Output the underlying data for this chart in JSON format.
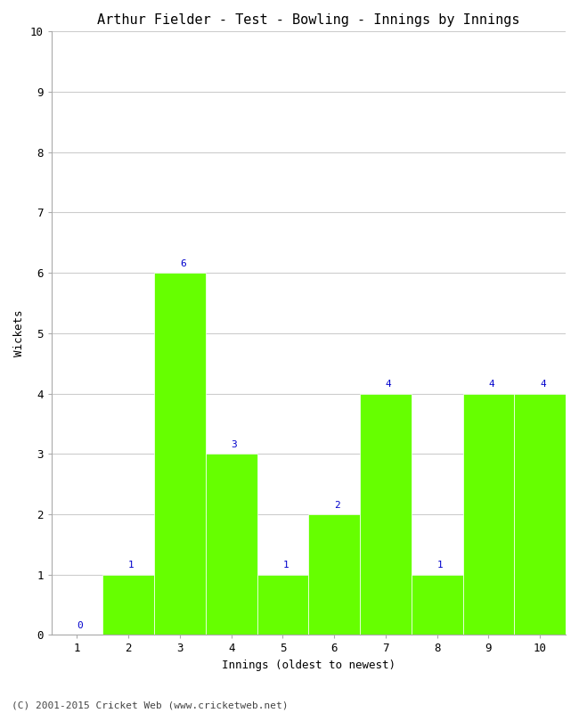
{
  "title": "Arthur Fielder - Test - Bowling - Innings by Innings",
  "xlabel": "Innings (oldest to newest)",
  "ylabel": "Wickets",
  "categories": [
    "1",
    "2",
    "3",
    "4",
    "5",
    "6",
    "7",
    "8",
    "9",
    "10"
  ],
  "values": [
    0,
    1,
    6,
    3,
    1,
    2,
    4,
    1,
    4,
    4
  ],
  "bar_color": "#66ff00",
  "bar_edge_color": "#66ff00",
  "label_color": "#0000cc",
  "ylim": [
    0,
    10
  ],
  "yticks": [
    0,
    1,
    2,
    3,
    4,
    5,
    6,
    7,
    8,
    9,
    10
  ],
  "background_color": "#ffffff",
  "grid_color": "#cccccc",
  "title_fontsize": 11,
  "label_fontsize": 9,
  "tick_fontsize": 9,
  "annotation_fontsize": 8,
  "footer": "(C) 2001-2015 Cricket Web (www.cricketweb.net)"
}
